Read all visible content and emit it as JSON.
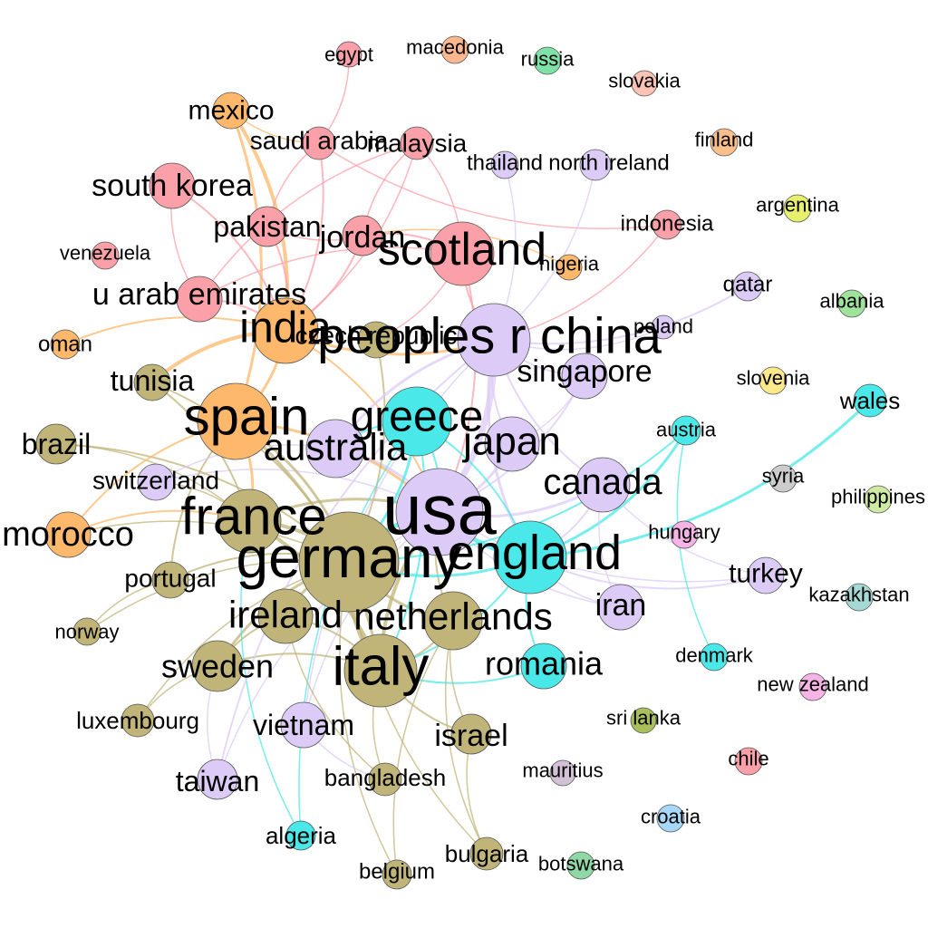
{
  "groups": {
    "pink": "#fba0a8",
    "orange": "#fdb86b",
    "olive": "#c0b478",
    "lavender": "#dccbf6",
    "cyan": "#4ae8e8",
    "other": "#cccccc"
  },
  "nodes": [
    {
      "id": "usa",
      "label": "usa",
      "color": "#dccbf6",
      "bold": false
    },
    {
      "id": "germany",
      "label": "germany",
      "color": "#c0b478",
      "bold": false
    },
    {
      "id": "peoples_r_china",
      "label": "peoples r china",
      "color": "#dccbf6",
      "bold": false
    },
    {
      "id": "italy",
      "label": "italy",
      "color": "#c0b478",
      "bold": false
    },
    {
      "id": "france",
      "label": "france",
      "color": "#c0b478",
      "bold": false
    },
    {
      "id": "spain",
      "label": "spain",
      "color": "#fdb86b",
      "bold": false
    },
    {
      "id": "england",
      "label": "england",
      "color": "#4ae8e8",
      "bold": false
    },
    {
      "id": "greece",
      "label": "greece",
      "color": "#4ae8e8",
      "bold": false
    },
    {
      "id": "india",
      "label": "india",
      "color": "#fdb86b",
      "bold": false
    },
    {
      "id": "scotland",
      "label": "scotland",
      "color": "#fba0a8",
      "bold": false
    },
    {
      "id": "australia",
      "label": "australia",
      "color": "#dccbf6",
      "bold": false
    },
    {
      "id": "netherlands",
      "label": "netherlands",
      "color": "#c0b478",
      "bold": false
    },
    {
      "id": "japan",
      "label": "japan",
      "color": "#dccbf6",
      "bold": false
    },
    {
      "id": "canada",
      "label": "canada",
      "color": "#dccbf6",
      "bold": false
    },
    {
      "id": "ireland",
      "label": "ireland",
      "color": "#c0b478",
      "bold": false
    },
    {
      "id": "singapore",
      "label": "singapore",
      "color": "#dccbf6",
      "bold": false
    },
    {
      "id": "morocco",
      "label": "morocco",
      "color": "#fdb86b",
      "bold": false
    },
    {
      "id": "romania",
      "label": "romania",
      "color": "#4ae8e8",
      "bold": false
    },
    {
      "id": "sweden",
      "label": "sweden",
      "color": "#c0b478",
      "bold": false
    },
    {
      "id": "u_arab_emirates",
      "label": "u arab emirates",
      "color": "#fba0a8",
      "bold": false
    },
    {
      "id": "south_korea",
      "label": "south korea",
      "color": "#fba0a8",
      "bold": false
    },
    {
      "id": "israel",
      "label": "israel",
      "color": "#c0b478",
      "bold": false
    },
    {
      "id": "iran",
      "label": "iran",
      "color": "#dccbf6",
      "bold": false
    },
    {
      "id": "vietnam",
      "label": "vietnam",
      "color": "#dccbf6",
      "bold": false
    },
    {
      "id": "turkey",
      "label": "turkey",
      "color": "#dccbf6",
      "bold": false
    },
    {
      "id": "czech_republic",
      "label": "czech republic",
      "color": "#c0b478",
      "bold": false
    },
    {
      "id": "jordan",
      "label": "jordan",
      "color": "#fba0a8",
      "bold": false
    },
    {
      "id": "pakistan",
      "label": "pakistan",
      "color": "#fba0a8",
      "bold": false
    },
    {
      "id": "taiwan",
      "label": "taiwan",
      "color": "#dccbf6",
      "bold": false
    },
    {
      "id": "brazil",
      "label": "brazil",
      "color": "#c0b478",
      "bold": false
    },
    {
      "id": "tunisia",
      "label": "tunisia",
      "color": "#c0b478",
      "bold": false
    },
    {
      "id": "switzerland",
      "label": "switzerland",
      "color": "#dccbf6",
      "bold": false
    },
    {
      "id": "portugal",
      "label": "portugal",
      "color": "#c0b478",
      "bold": false
    },
    {
      "id": "mexico",
      "label": "mexico",
      "color": "#fdb86b",
      "bold": false
    },
    {
      "id": "saudi_arabia",
      "label": "saudi arabia",
      "color": "#fba0a8",
      "bold": false
    },
    {
      "id": "malaysia",
      "label": "malaysia",
      "color": "#fba0a8",
      "bold": false
    },
    {
      "id": "bangladesh",
      "label": "bangladesh",
      "color": "#c0b478",
      "bold": false
    },
    {
      "id": "luxembourg",
      "label": "luxembourg",
      "color": "#c0b478",
      "bold": false
    },
    {
      "id": "bulgaria",
      "label": "bulgaria",
      "color": "#c0b478",
      "bold": false
    },
    {
      "id": "wales",
      "label": "wales",
      "color": "#4ae8e8",
      "bold": false
    },
    {
      "id": "algeria",
      "label": "algeria",
      "color": "#4ae8e8",
      "bold": false
    },
    {
      "id": "belgium",
      "label": "belgium",
      "color": "#c0b478",
      "bold": false
    },
    {
      "id": "indonesia",
      "label": "indonesia",
      "color": "#fba0a8",
      "bold": false
    },
    {
      "id": "qatar",
      "label": "qatar",
      "color": "#dccbf6",
      "bold": false
    },
    {
      "id": "thailand",
      "label": "thailand",
      "color": "#dccbf6",
      "bold": false
    },
    {
      "id": "north_ireland",
      "label": "north ireland",
      "color": "#dccbf6",
      "bold": false
    },
    {
      "id": "oman",
      "label": "oman",
      "color": "#fdb86b",
      "bold": false
    },
    {
      "id": "austria",
      "label": "austria",
      "color": "#4ae8e8",
      "bold": false
    },
    {
      "id": "norway",
      "label": "norway",
      "color": "#c0b478",
      "bold": false
    },
    {
      "id": "poland",
      "label": "poland",
      "color": "#dccbf6",
      "bold": false
    },
    {
      "id": "nigeria",
      "label": "nigeria",
      "color": "#fdb86b",
      "bold": false
    },
    {
      "id": "denmark",
      "label": "denmark",
      "color": "#4ae8e8",
      "bold": false
    },
    {
      "id": "venezuela",
      "label": "venezuela",
      "color": "#fba0a8",
      "bold": false
    },
    {
      "id": "egypt",
      "label": "egypt",
      "color": "#fba0a8",
      "bold": false
    },
    {
      "id": "macedonia",
      "label": "macedonia",
      "color": "#fdb88e",
      "bold": false
    },
    {
      "id": "russia",
      "label": "russia",
      "color": "#7ee2a7",
      "bold": false
    },
    {
      "id": "slovakia",
      "label": "slovakia",
      "color": "#fbc3b4",
      "bold": false
    },
    {
      "id": "finland",
      "label": "finland",
      "color": "#fbbf8c",
      "bold": false
    },
    {
      "id": "argentina",
      "label": "argentina",
      "color": "#e7ef6d",
      "bold": false
    },
    {
      "id": "albania",
      "label": "albania",
      "color": "#9fe39a",
      "bold": false
    },
    {
      "id": "slovenia",
      "label": "slovenia",
      "color": "#fde98c",
      "bold": false
    },
    {
      "id": "syria",
      "label": "syria",
      "color": "#cccccc",
      "bold": false
    },
    {
      "id": "philippines",
      "label": "philippines",
      "color": "#cfeaa2",
      "bold": false
    },
    {
      "id": "hungary",
      "label": "hungary",
      "color": "#f6b4e6",
      "bold": false
    },
    {
      "id": "kazakhstan",
      "label": "kazakhstan",
      "color": "#a4d9d5",
      "bold": false
    },
    {
      "id": "new_zealand",
      "label": "new zealand",
      "color": "#f6b4e6",
      "bold": false
    },
    {
      "id": "sri_lanka",
      "label": "sri lanka",
      "color": "#a8bf5c",
      "bold": false
    },
    {
      "id": "chile",
      "label": "chile",
      "color": "#fba0a8",
      "bold": false
    },
    {
      "id": "mauritius",
      "label": "mauritius",
      "color": "#d4c1d7",
      "bold": false
    },
    {
      "id": "croatia",
      "label": "croatia",
      "color": "#a8d8f8",
      "bold": false
    },
    {
      "id": "botswana",
      "label": "botswana",
      "color": "#8fd8a6",
      "bold": false
    }
  ],
  "edges": [
    {
      "s": "usa",
      "t": "germany",
      "w": 5,
      "color": "#4ae8e8"
    },
    {
      "s": "usa",
      "t": "peoples_r_china",
      "w": 7,
      "color": "#dccbf6"
    },
    {
      "s": "usa",
      "t": "england",
      "w": 5,
      "color": "#4ae8e8"
    },
    {
      "s": "usa",
      "t": "italy",
      "w": 4,
      "color": "#c0b478"
    },
    {
      "s": "usa",
      "t": "france",
      "w": 3,
      "color": "#c0b478"
    },
    {
      "s": "usa",
      "t": "canada",
      "w": 3,
      "color": "#dccbf6"
    },
    {
      "s": "usa",
      "t": "japan",
      "w": 3,
      "color": "#dccbf6"
    },
    {
      "s": "usa",
      "t": "australia",
      "w": 3,
      "color": "#dccbf6"
    },
    {
      "s": "usa",
      "t": "greece",
      "w": 2,
      "color": "#4ae8e8"
    },
    {
      "s": "usa",
      "t": "spain",
      "w": 3,
      "color": "#fdb86b"
    },
    {
      "s": "usa",
      "t": "india",
      "w": 2,
      "color": "#fdb86b"
    },
    {
      "s": "usa",
      "t": "singapore",
      "w": 2,
      "color": "#dccbf6"
    },
    {
      "s": "usa",
      "t": "iran",
      "w": 1.5,
      "color": "#dccbf6"
    },
    {
      "s": "usa",
      "t": "turkey",
      "w": 1.5,
      "color": "#dccbf6"
    },
    {
      "s": "usa",
      "t": "vietnam",
      "w": 1.5,
      "color": "#dccbf6"
    },
    {
      "s": "usa",
      "t": "taiwan",
      "w": 1.5,
      "color": "#dccbf6"
    },
    {
      "s": "usa",
      "t": "scotland",
      "w": 2,
      "color": "#fba0a8"
    },
    {
      "s": "usa",
      "t": "netherlands",
      "w": 2,
      "color": "#c0b478"
    },
    {
      "s": "usa",
      "t": "switzerland",
      "w": 1.5,
      "color": "#dccbf6"
    },
    {
      "s": "germany",
      "t": "italy",
      "w": 5,
      "color": "#c0b478"
    },
    {
      "s": "germany",
      "t": "france",
      "w": 4,
      "color": "#c0b478"
    },
    {
      "s": "germany",
      "t": "netherlands",
      "w": 3,
      "color": "#c0b478"
    },
    {
      "s": "germany",
      "t": "spain",
      "w": 3,
      "color": "#c0b478"
    },
    {
      "s": "germany",
      "t": "ireland",
      "w": 3,
      "color": "#c0b478"
    },
    {
      "s": "germany",
      "t": "sweden",
      "w": 3,
      "color": "#c0b478"
    },
    {
      "s": "germany",
      "t": "england",
      "w": 3,
      "color": "#4ae8e8"
    },
    {
      "s": "germany",
      "t": "greece",
      "w": 3,
      "color": "#4ae8e8"
    },
    {
      "s": "germany",
      "t": "brazil",
      "w": 2,
      "color": "#c0b478"
    },
    {
      "s": "germany",
      "t": "tunisia",
      "w": 2,
      "color": "#c0b478"
    },
    {
      "s": "germany",
      "t": "portugal",
      "w": 2,
      "color": "#c0b478"
    },
    {
      "s": "germany",
      "t": "austria",
      "w": 2,
      "color": "#4ae8e8"
    },
    {
      "s": "germany",
      "t": "czech_republic",
      "w": 2,
      "color": "#c0b478"
    },
    {
      "s": "germany",
      "t": "bulgaria",
      "w": 1.5,
      "color": "#c0b478"
    },
    {
      "s": "germany",
      "t": "belgium",
      "w": 1.5,
      "color": "#c0b478"
    },
    {
      "s": "germany",
      "t": "luxembourg",
      "w": 1.5,
      "color": "#c0b478"
    },
    {
      "s": "germany",
      "t": "norway",
      "w": 1.5,
      "color": "#c0b478"
    },
    {
      "s": "germany",
      "t": "morocco",
      "w": 1.5,
      "color": "#c0b478"
    },
    {
      "s": "italy",
      "t": "france",
      "w": 4,
      "color": "#c0b478"
    },
    {
      "s": "italy",
      "t": "netherlands",
      "w": 2,
      "color": "#c0b478"
    },
    {
      "s": "italy",
      "t": "israel",
      "w": 2,
      "color": "#c0b478"
    },
    {
      "s": "italy",
      "t": "bangladesh",
      "w": 1.5,
      "color": "#c0b478"
    },
    {
      "s": "italy",
      "t": "sweden",
      "w": 2,
      "color": "#c0b478"
    },
    {
      "s": "italy",
      "t": "romania",
      "w": 2,
      "color": "#4ae8e8"
    },
    {
      "s": "italy",
      "t": "england",
      "w": 2,
      "color": "#4ae8e8"
    },
    {
      "s": "italy",
      "t": "spain",
      "w": 3,
      "color": "#c0b478"
    },
    {
      "s": "italy",
      "t": "greece",
      "w": 2,
      "color": "#4ae8e8"
    },
    {
      "s": "italy",
      "t": "ireland",
      "w": 2,
      "color": "#c0b478"
    },
    {
      "s": "france",
      "t": "spain",
      "w": 3,
      "color": "#fdb86b"
    },
    {
      "s": "france",
      "t": "morocco",
      "w": 2,
      "color": "#fdb86b"
    },
    {
      "s": "france",
      "t": "tunisia",
      "w": 2,
      "color": "#c0b478"
    },
    {
      "s": "france",
      "t": "switzerland",
      "w": 1.5,
      "color": "#c0b478"
    },
    {
      "s": "france",
      "t": "algeria",
      "w": 1.5,
      "color": "#4ae8e8"
    },
    {
      "s": "france",
      "t": "brazil",
      "w": 1.5,
      "color": "#c0b478"
    },
    {
      "s": "spain",
      "t": "india",
      "w": 3,
      "color": "#fdb86b"
    },
    {
      "s": "spain",
      "t": "mexico",
      "w": 3,
      "color": "#fdb86b"
    },
    {
      "s": "spain",
      "t": "morocco",
      "w": 2,
      "color": "#fdb86b"
    },
    {
      "s": "spain",
      "t": "portugal",
      "w": 2,
      "color": "#c0b478"
    },
    {
      "s": "india",
      "t": "mexico",
      "w": 4,
      "color": "#fdb86b"
    },
    {
      "s": "india",
      "t": "oman",
      "w": 2,
      "color": "#fdb86b"
    },
    {
      "s": "india",
      "t": "tunisia",
      "w": 4,
      "color": "#fdb86b"
    },
    {
      "s": "india",
      "t": "u_arab_emirates",
      "w": 2,
      "color": "#fba0a8"
    },
    {
      "s": "india",
      "t": "saudi_arabia",
      "w": 2,
      "color": "#fba0a8"
    },
    {
      "s": "india",
      "t": "south_korea",
      "w": 2,
      "color": "#fba0a8"
    },
    {
      "s": "india",
      "t": "pakistan",
      "w": 2,
      "color": "#fba0a8"
    },
    {
      "s": "india",
      "t": "peoples_r_china",
      "w": 3,
      "color": "#fdb86b"
    },
    {
      "s": "india",
      "t": "jordan",
      "w": 2,
      "color": "#fba0a8"
    },
    {
      "s": "india",
      "t": "malaysia",
      "w": 1.5,
      "color": "#fba0a8"
    },
    {
      "s": "scotland",
      "t": "peoples_r_china",
      "w": 2,
      "color": "#fba0a8"
    },
    {
      "s": "scotland",
      "t": "malaysia",
      "w": 1.5,
      "color": "#fba0a8"
    },
    {
      "s": "scotland",
      "t": "jordan",
      "w": 2,
      "color": "#fba0a8"
    },
    {
      "s": "scotland",
      "t": "u_arab_emirates",
      "w": 1.5,
      "color": "#fba0a8"
    },
    {
      "s": "saudi_arabia",
      "t": "egypt",
      "w": 1.5,
      "color": "#fba0a8"
    },
    {
      "s": "saudi_arabia",
      "t": "indonesia",
      "w": 1.5,
      "color": "#fba0a8"
    },
    {
      "s": "saudi_arabia",
      "t": "pakistan",
      "w": 1.5,
      "color": "#fba0a8"
    },
    {
      "s": "malaysia",
      "t": "jordan",
      "w": 1.5,
      "color": "#fba0a8"
    },
    {
      "s": "malaysia",
      "t": "u_arab_emirates",
      "w": 1.5,
      "color": "#fba0a8"
    },
    {
      "s": "pakistan",
      "t": "jordan",
      "w": 1.5,
      "color": "#fba0a8"
    },
    {
      "s": "south_korea",
      "t": "u_arab_emirates",
      "w": 1.5,
      "color": "#fba0a8"
    },
    {
      "s": "peoples_r_china",
      "t": "england",
      "w": 3,
      "color": "#dccbf6"
    },
    {
      "s": "peoples_r_china",
      "t": "singapore",
      "w": 2,
      "color": "#dccbf6"
    },
    {
      "s": "peoples_r_china",
      "t": "japan",
      "w": 2,
      "color": "#dccbf6"
    },
    {
      "s": "peoples_r_china",
      "t": "australia",
      "w": 3,
      "color": "#dccbf6"
    },
    {
      "s": "peoples_r_china",
      "t": "canada",
      "w": 2,
      "color": "#dccbf6"
    },
    {
      "s": "peoples_r_china",
      "t": "qatar",
      "w": 2,
      "color": "#dccbf6"
    },
    {
      "s": "peoples_r_china",
      "t": "north_ireland",
      "w": 1.5,
      "color": "#dccbf6"
    },
    {
      "s": "peoples_r_china",
      "t": "thailand",
      "w": 1.5,
      "color": "#dccbf6"
    },
    {
      "s": "peoples_r_china",
      "t": "poland",
      "w": 1.5,
      "color": "#dccbf6"
    },
    {
      "s": "peoples_r_china",
      "t": "indonesia",
      "w": 1.5,
      "color": "#fba0a8"
    },
    {
      "s": "peoples_r_china",
      "t": "taiwan",
      "w": 2,
      "color": "#dccbf6"
    },
    {
      "s": "peoples_r_china",
      "t": "vietnam",
      "w": 1.5,
      "color": "#dccbf6"
    },
    {
      "s": "england",
      "t": "austria",
      "w": 3,
      "color": "#4ae8e8"
    },
    {
      "s": "england",
      "t": "wales",
      "w": 3,
      "color": "#4ae8e8"
    },
    {
      "s": "england",
      "t": "romania",
      "w": 2,
      "color": "#4ae8e8"
    },
    {
      "s": "england",
      "t": "greece",
      "w": 2,
      "color": "#4ae8e8"
    },
    {
      "s": "england",
      "t": "iran",
      "w": 1.5,
      "color": "#dccbf6"
    },
    {
      "s": "england",
      "t": "turkey",
      "w": 2,
      "color": "#dccbf6"
    },
    {
      "s": "england",
      "t": "canada",
      "w": 2,
      "color": "#dccbf6"
    },
    {
      "s": "austria",
      "t": "denmark",
      "w": 1.5,
      "color": "#4ae8e8"
    },
    {
      "s": "greece",
      "t": "algeria",
      "w": 1.5,
      "color": "#4ae8e8"
    },
    {
      "s": "greece",
      "t": "australia",
      "w": 2,
      "color": "#4ae8e8"
    },
    {
      "s": "canada",
      "t": "turkey",
      "w": 1.5,
      "color": "#dccbf6"
    },
    {
      "s": "canada",
      "t": "iran",
      "w": 1.5,
      "color": "#dccbf6"
    },
    {
      "s": "netherlands",
      "t": "israel",
      "w": 1.5,
      "color": "#c0b478"
    },
    {
      "s": "netherlands",
      "t": "bulgaria",
      "w": 1.5,
      "color": "#c0b478"
    },
    {
      "s": "netherlands",
      "t": "belgium",
      "w": 1.5,
      "color": "#c0b478"
    },
    {
      "s": "ireland",
      "t": "sweden",
      "w": 2,
      "color": "#c0b478"
    },
    {
      "s": "ireland",
      "t": "bangladesh",
      "w": 1.5,
      "color": "#c0b478"
    },
    {
      "s": "sweden",
      "t": "taiwan",
      "w": 1.5,
      "color": "#dccbf6"
    },
    {
      "s": "sweden",
      "t": "luxembourg",
      "w": 1.5,
      "color": "#c0b478"
    },
    {
      "s": "vietnam",
      "t": "bangladesh",
      "w": 1.5,
      "color": "#dccbf6"
    },
    {
      "s": "israel",
      "t": "bulgaria",
      "w": 1.5,
      "color": "#c0b478"
    },
    {
      "s": "portugal",
      "t": "norway",
      "w": 1.5,
      "color": "#c0b478"
    },
    {
      "s": "australia",
      "t": "switzerland",
      "w": 1.5,
      "color": "#dccbf6"
    },
    {
      "s": "japan",
      "t": "singapore",
      "w": 1.5,
      "color": "#dccbf6"
    },
    {
      "s": "czech_republic",
      "t": "scotland",
      "w": 1.5,
      "color": "#fba0a8"
    },
    {
      "s": "nigeria",
      "t": "jordan",
      "w": 1.5,
      "color": "#fdb86b"
    },
    {
      "s": "mexico",
      "t": "saudi_arabia",
      "w": 1.5,
      "color": "#fdb86b"
    }
  ]
}
